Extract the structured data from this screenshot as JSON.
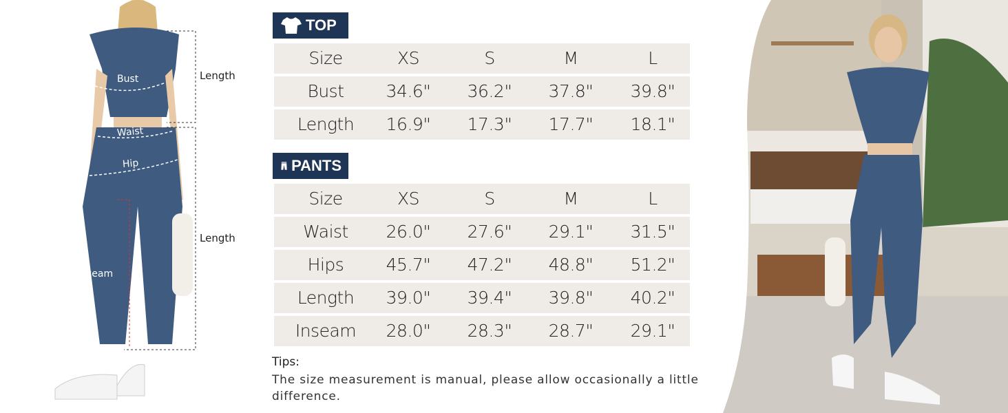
{
  "top": {
    "label": "TOP",
    "icon": "tshirt-icon",
    "header": [
      "Size",
      "XS",
      "S",
      "M",
      "L"
    ],
    "rows": [
      [
        "Bust",
        "34.6\"",
        "36.2\"",
        "37.8\"",
        "39.8\""
      ],
      [
        "Length",
        "16.9\"",
        "17.3\"",
        "17.7\"",
        "18.1\""
      ]
    ]
  },
  "pants": {
    "label": "PANTS",
    "icon": "pants-icon",
    "header": [
      "Size",
      "XS",
      "S",
      "M",
      "L"
    ],
    "rows": [
      [
        "Waist",
        "26.0\"",
        "27.6\"",
        "29.1\"",
        "31.5\""
      ],
      [
        "Hips",
        "45.7\"",
        "47.2\"",
        "48.8\"",
        "51.2\""
      ],
      [
        "Length",
        "39.0\"",
        "39.4\"",
        "39.8\"",
        "40.2\""
      ],
      [
        "Inseam",
        "28.0\"",
        "28.3\"",
        "28.7\"",
        "29.1\""
      ]
    ]
  },
  "tips": {
    "title": "Tips:",
    "text": "The size measurement is manual, please allow occasionally a little difference."
  },
  "figure_labels": {
    "bust": "Bust",
    "waist": "Waist",
    "hip": "Hip",
    "inseam": "Inseam",
    "top_length": "Length",
    "pants_length": "Length"
  },
  "colors": {
    "tag_bg": "#1f3556",
    "row_bg": "#efebe7",
    "garment": "#3f5b80"
  }
}
